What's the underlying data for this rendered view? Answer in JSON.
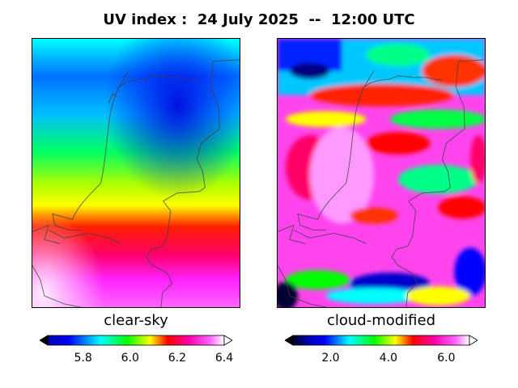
{
  "title": "UV index :  24 July 2025  --  12:00 UTC",
  "panels": [
    {
      "label": "clear-sky",
      "colorbar": {
        "range": [
          5.65,
          6.4
        ],
        "ticks": [
          "5.8",
          "6.0",
          "6.2",
          "6.4"
        ],
        "tick_values": [
          5.8,
          6.0,
          6.2,
          6.4
        ]
      }
    },
    {
      "label": "cloud-modified",
      "colorbar": {
        "range": [
          0.7,
          6.8
        ],
        "ticks": [
          "2.0",
          "4.0",
          "6.0"
        ],
        "tick_values": [
          2.0,
          4.0,
          6.0
        ]
      }
    }
  ],
  "colormap": [
    "#000000",
    "#0000aa",
    "#0000ff",
    "#00ffff",
    "#00ff00",
    "#ffff00",
    "#ff0000",
    "#ff00aa",
    "#ff66ff",
    "#ffffff"
  ]
}
